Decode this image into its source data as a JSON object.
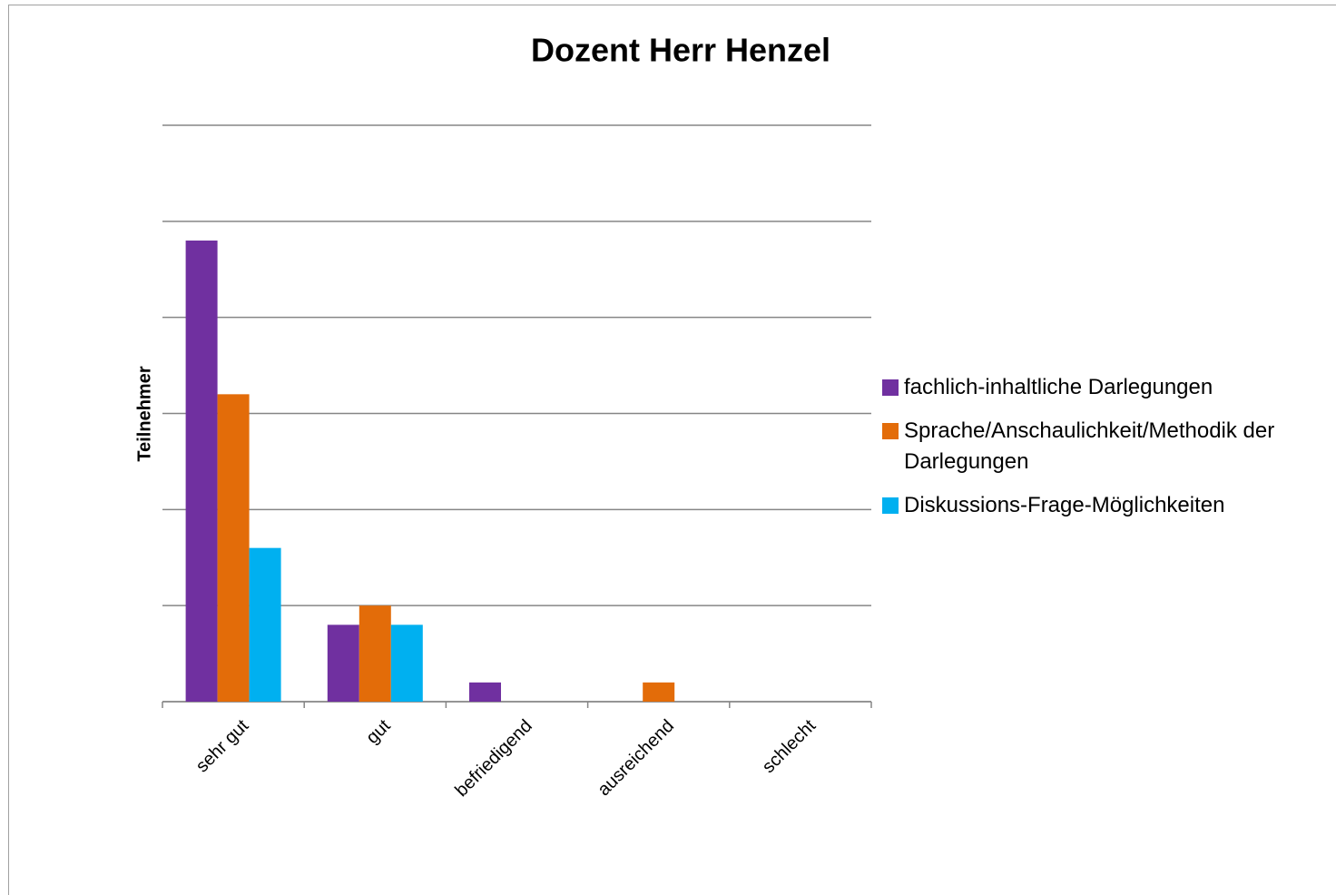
{
  "chart_data": {
    "type": "bar",
    "title": "Dozent Herr Henzel",
    "y_label": "Teilnehmer",
    "categories": [
      "sehr gut",
      "gut",
      "befriedigend",
      "ausreichend",
      "schlecht"
    ],
    "series": [
      {
        "name": "fachlich-inhaltliche Darlegungen",
        "color": "#7030a0",
        "values": [
          24,
          4,
          1,
          0,
          0
        ]
      },
      {
        "name": "Sprache/Anschaulichkeit/Methodik der Darlegungen",
        "color": "#e36c09",
        "values": [
          16,
          5,
          0,
          1,
          0
        ]
      },
      {
        "name": "Diskussions-Frage-Möglichkeiten",
        "color": "#00b0f0",
        "values": [
          8,
          4,
          0,
          0,
          0
        ]
      }
    ],
    "ylim": [
      0,
      30
    ],
    "yticks": [
      0,
      5,
      10,
      15,
      20,
      25,
      30
    ],
    "grid": true,
    "legend": "right"
  }
}
